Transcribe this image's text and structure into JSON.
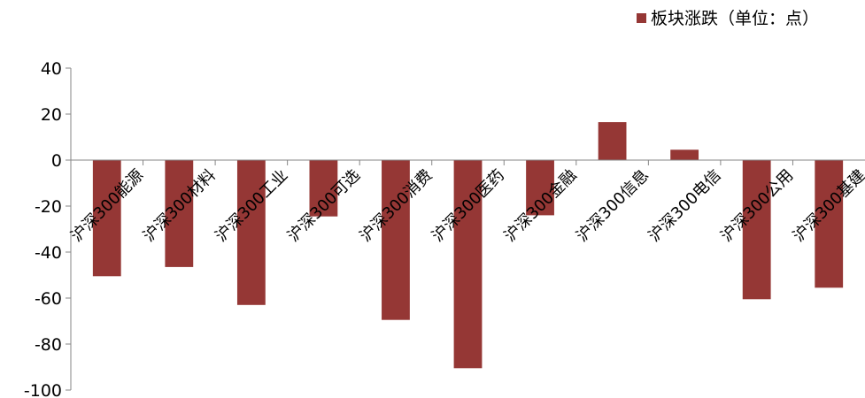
{
  "chart_data": {
    "type": "bar",
    "legend": {
      "position": "top-right"
    },
    "series": [
      {
        "name": "板块涨跌（单位：点）",
        "color": "#953735",
        "values": [
          -50.5,
          -46.5,
          -63,
          -24.5,
          -69.5,
          -90.5,
          -24,
          16.5,
          4.5,
          -60.5,
          -55.5
        ]
      }
    ],
    "categories": [
      "沪深300能源",
      "沪深300材料",
      "沪深300工业",
      "沪深300可选",
      "沪深300消费",
      "沪深300医药",
      "沪深300金融",
      "沪深300信息",
      "沪深300电信",
      "沪深300公用",
      "沪深300基建"
    ],
    "ylim": [
      -100,
      40
    ],
    "yticks": [
      40,
      20,
      0,
      -20,
      -40,
      -60,
      -80,
      -100
    ],
    "grid": false
  }
}
